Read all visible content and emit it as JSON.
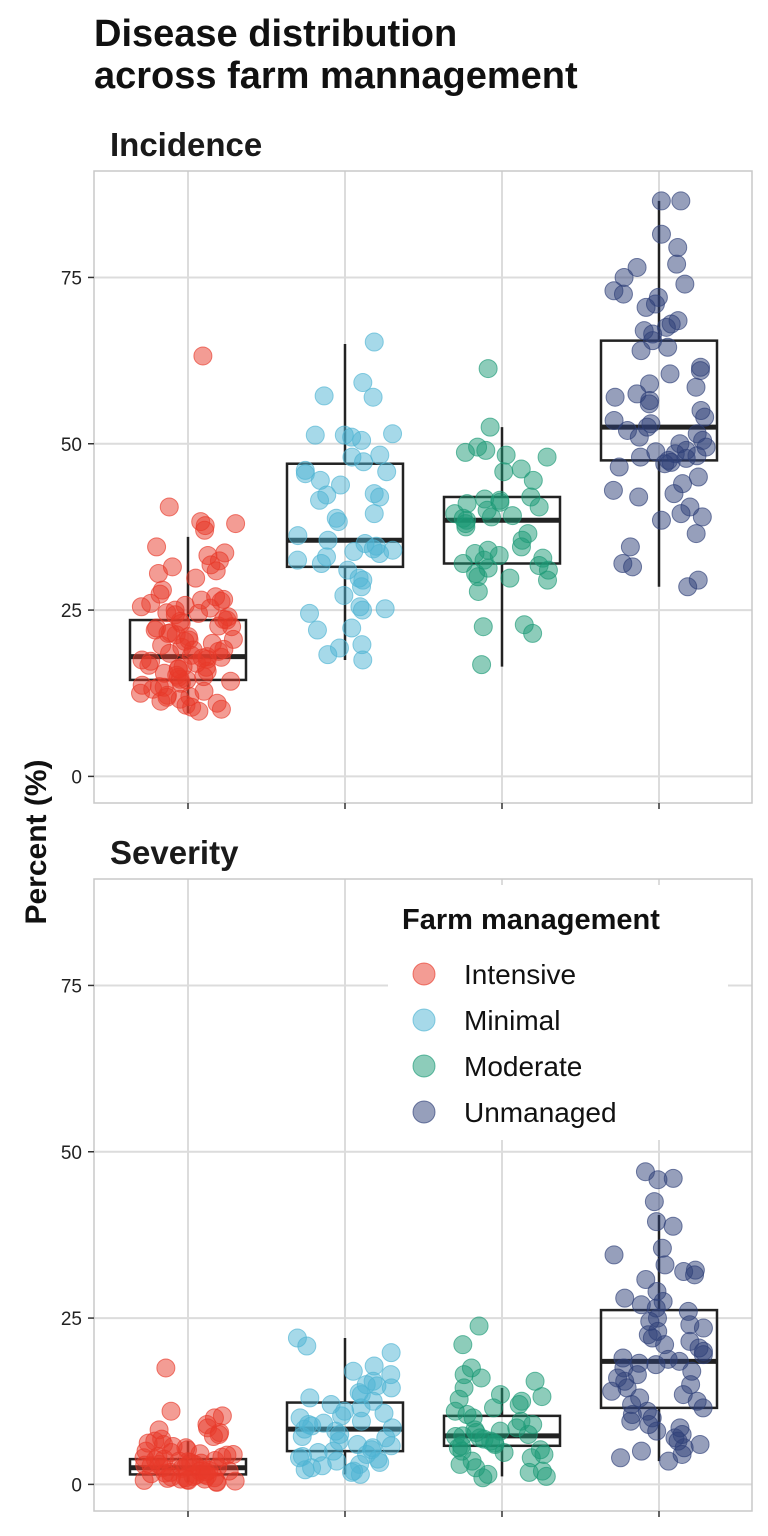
{
  "chart_data": {
    "type": "scatter",
    "title": "Disease distribution\nacross farm mannagement",
    "ylabel": "Percent (%)",
    "xlabel": "",
    "ylim": [
      -4,
      91
    ],
    "yticks": [
      0,
      25,
      50,
      75
    ],
    "grid": true,
    "categories": [
      "Intensive",
      "Minimal",
      "Moderate",
      "Unmanaged"
    ],
    "colors": {
      "Intensive": "#e8392a",
      "Minimal": "#4eb3d3",
      "Moderate": "#1b9a76",
      "Unmanaged": "#2e3f78"
    },
    "legend": {
      "title": "Farm management",
      "placement": "top-right of Severity panel",
      "items": [
        "Intensive",
        "Minimal",
        "Moderate",
        "Unmanaged"
      ]
    },
    "panels": [
      {
        "name": "Incidence",
        "boxes": [
          {
            "category": "Intensive",
            "min": 9.5,
            "q1": 14.5,
            "median": 18,
            "q3": 23.5,
            "max": 36
          },
          {
            "category": "Minimal",
            "min": 17.5,
            "q1": 31.5,
            "median": 35.5,
            "q3": 47,
            "max": 65
          },
          {
            "category": "Moderate",
            "min": 16.5,
            "q1": 32,
            "median": 38.5,
            "q3": 42,
            "max": 52.5
          },
          {
            "category": "Unmanaged",
            "min": 28.5,
            "q1": 47.5,
            "median": 52.5,
            "q3": 65.5,
            "max": 86.5
          }
        ],
        "points": {
          "Intensive": [
            63.2,
            40.5,
            38.3,
            38.0,
            37.7,
            37.0,
            34.5,
            33.6,
            33.2,
            32.4,
            31.8,
            31.5,
            30.9,
            30.5,
            29.8,
            28.0,
            27.4,
            27.0,
            26.6,
            26.3,
            26.0,
            25.7,
            25.3,
            25.0,
            24.6,
            24.3,
            24.0,
            23.6,
            23.3,
            23.0,
            22.6,
            22.3,
            22.0,
            21.6,
            21.3,
            21.0,
            20.6,
            20.3,
            20.0,
            19.7,
            19.4,
            19.1,
            18.8,
            18.5,
            18.2,
            17.9,
            17.6,
            17.3,
            17.0,
            16.7,
            16.4,
            16.1,
            15.8,
            15.5,
            15.2,
            14.9,
            14.6,
            14.3,
            14.0,
            13.7,
            13.4,
            13.1,
            12.8,
            12.5,
            12.2,
            11.9,
            11.6,
            11.3,
            11.0,
            10.7,
            10.4,
            10.1,
            9.8,
            18.0,
            17.5,
            19.0,
            16.5,
            20.5,
            15.0,
            21.5,
            14.5,
            22.5,
            13.5,
            12.0,
            23.5,
            24.5,
            25.5,
            26.5,
            17.8,
            16.2
          ],
          "Minimal": [
            65.3,
            59.2,
            57.2,
            57.0,
            51.5,
            51.3,
            51.3,
            51.0,
            50.5,
            48.3,
            48.0,
            47.3,
            46.0,
            45.8,
            45.5,
            44.5,
            43.8,
            42.5,
            42.3,
            42.0,
            41.5,
            39.5,
            38.8,
            38.3,
            36.2,
            35.5,
            35.0,
            34.6,
            34.2,
            34.0,
            33.8,
            33.5,
            33.0,
            32.5,
            32.0,
            31.0,
            29.8,
            29.5,
            28.5,
            27.2,
            25.5,
            25.2,
            25.0,
            24.5,
            22.3,
            22.0,
            19.8,
            19.3,
            18.3,
            17.5
          ],
          "Moderate": [
            61.3,
            52.5,
            49.5,
            49.0,
            48.7,
            48.3,
            48.0,
            46.2,
            45.8,
            44.5,
            42.0,
            41.7,
            41.5,
            41.2,
            41.0,
            40.5,
            40.0,
            39.5,
            39.2,
            39.0,
            38.8,
            38.5,
            38.0,
            37.5,
            36.5,
            35.5,
            34.5,
            34.0,
            33.5,
            33.2,
            32.8,
            32.5,
            32.0,
            31.7,
            31.3,
            31.0,
            30.5,
            30.0,
            29.8,
            29.5,
            27.8,
            22.8,
            22.5,
            21.5,
            16.8
          ],
          "Unmanaged": [
            86.5,
            86.5,
            81.5,
            79.5,
            77.0,
            76.5,
            75.0,
            74.0,
            73.0,
            72.5,
            72.0,
            71.0,
            70.5,
            68.5,
            68.0,
            67.5,
            67.0,
            66.5,
            65.5,
            64.5,
            64.0,
            61.5,
            61.0,
            60.5,
            59.0,
            58.5,
            57.5,
            57.0,
            56.5,
            56.0,
            55.0,
            54.0,
            53.5,
            53.0,
            52.5,
            52.0,
            51.5,
            51.0,
            50.5,
            50.0,
            49.5,
            49.0,
            48.8,
            48.5,
            48.2,
            48.0,
            47.8,
            47.5,
            47.2,
            47.0,
            46.5,
            45.0,
            44.0,
            43.0,
            42.5,
            42.0,
            40.5,
            39.5,
            39.0,
            38.5,
            36.5,
            34.5,
            32.0,
            31.5,
            29.5,
            28.5
          ]
        }
      },
      {
        "name": "Severity",
        "boxes": [
          {
            "category": "Intensive",
            "min": 0.3,
            "q1": 1.5,
            "median": 2.5,
            "q3": 3.8,
            "max": 6.5
          },
          {
            "category": "Minimal",
            "min": 1.5,
            "q1": 5,
            "median": 8.3,
            "q3": 12.3,
            "max": 22
          },
          {
            "category": "Moderate",
            "min": 1.2,
            "q1": 5.8,
            "median": 7.3,
            "q3": 10.3,
            "max": 14.5
          },
          {
            "category": "Unmanaged",
            "min": 3.5,
            "q1": 11.5,
            "median": 18.5,
            "q3": 26.2,
            "max": 40.5
          }
        ],
        "points": {
          "Intensive": [
            17.5,
            11.0,
            10.3,
            10.0,
            9.0,
            8.5,
            8.2,
            7.8,
            7.5,
            7.2,
            6.8,
            6.5,
            6.2,
            6.0,
            5.7,
            5.5,
            5.2,
            5.0,
            4.8,
            4.6,
            4.4,
            4.2,
            4.0,
            3.8,
            3.6,
            3.4,
            3.2,
            3.0,
            2.8,
            2.6,
            2.4,
            2.2,
            2.0,
            1.8,
            1.6,
            1.4,
            1.2,
            1.0,
            0.8,
            0.6,
            0.5,
            0.4,
            0.3,
            2.5,
            3.0,
            1.5,
            2.0,
            3.5,
            1.0,
            4.5,
            0.8,
            2.7,
            1.9,
            3.3,
            0.6,
            1.3,
            2.1,
            0.9,
            1.7,
            2.9,
            3.7,
            4.1,
            0.7,
            1.1
          ],
          "Minimal": [
            22.0,
            20.8,
            19.8,
            17.8,
            17.0,
            16.5,
            15.5,
            15.0,
            14.8,
            14.5,
            13.8,
            13.5,
            13.0,
            12.5,
            12.0,
            11.5,
            11.0,
            10.7,
            10.3,
            10.0,
            9.5,
            9.0,
            8.8,
            8.5,
            8.0,
            7.5,
            7.2,
            7.0,
            6.5,
            6.0,
            5.8,
            5.5,
            5.2,
            5.0,
            4.8,
            4.5,
            4.2,
            4.0,
            3.8,
            3.5,
            3.3,
            3.0,
            2.8,
            2.5,
            2.2,
            2.0,
            1.8,
            1.5,
            8.3,
            9.2
          ],
          "Moderate": [
            23.8,
            21.0,
            17.5,
            16.5,
            16.0,
            15.5,
            14.5,
            13.5,
            13.2,
            12.8,
            12.5,
            12.0,
            11.5,
            11.0,
            10.5,
            10.0,
            9.5,
            9.0,
            8.5,
            8.2,
            8.0,
            7.8,
            7.5,
            7.2,
            7.0,
            6.8,
            6.5,
            6.2,
            6.0,
            5.8,
            5.5,
            5.2,
            5.0,
            4.8,
            4.5,
            4.0,
            3.5,
            3.0,
            2.5,
            2.0,
            1.8,
            1.5,
            1.2,
            1.0,
            7.3
          ],
          "Unmanaged": [
            47.0,
            46.0,
            45.8,
            42.5,
            39.5,
            38.8,
            35.5,
            34.5,
            33.0,
            32.2,
            32.0,
            31.5,
            30.8,
            29.0,
            28.0,
            27.5,
            27.0,
            26.5,
            26.0,
            25.0,
            24.5,
            24.0,
            23.5,
            23.0,
            22.5,
            22.0,
            21.5,
            21.0,
            20.5,
            20.0,
            19.5,
            19.0,
            18.8,
            18.5,
            18.2,
            18.0,
            17.5,
            17.0,
            16.5,
            16.0,
            15.5,
            15.0,
            14.5,
            14.0,
            13.5,
            13.0,
            12.5,
            12.0,
            11.5,
            11.0,
            10.5,
            10.0,
            9.5,
            9.0,
            8.5,
            8.0,
            7.5,
            7.0,
            6.5,
            6.0,
            5.5,
            5.0,
            4.5,
            4.0,
            3.5
          ]
        }
      }
    ]
  }
}
